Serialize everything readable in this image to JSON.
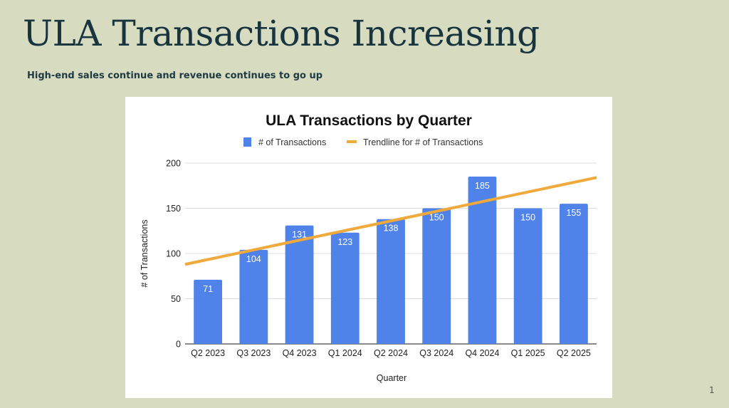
{
  "slide": {
    "title": "ULA Transactions Increasing",
    "subtitle": "High-end sales continue and revenue continues to go up",
    "page_number": "1",
    "colors": {
      "background": "#d7dbbf",
      "title": "#17343f",
      "bar": "#5083e9",
      "trendline": "#f0a93c"
    }
  },
  "chart_data": {
    "type": "bar",
    "title": "ULA Transactions by Quarter",
    "xlabel": "Quarter",
    "ylabel": "# of Transactions",
    "categories": [
      "Q2 2023",
      "Q3 2023",
      "Q4 2023",
      "Q1 2024",
      "Q2 2024",
      "Q3 2024",
      "Q4 2024",
      "Q1 2025",
      "Q2 2025"
    ],
    "series": [
      {
        "name": "# of Transactions",
        "type": "bar",
        "values": [
          71,
          104,
          131,
          123,
          138,
          150,
          185,
          150,
          155
        ],
        "data_labels": [
          "71",
          "104",
          "131",
          "123",
          "138",
          "150",
          "185",
          "150",
          "155"
        ]
      },
      {
        "name": "Trendline for # of Transactions",
        "type": "linear-trendline",
        "start_value": 88,
        "end_value": 184
      }
    ],
    "ylim": [
      0,
      200
    ],
    "yticks": [
      0,
      50,
      100,
      150,
      200
    ],
    "ytick_labels": [
      "0",
      "50",
      "100",
      "150",
      "200"
    ],
    "grid": true,
    "legend": {
      "position": "top-center",
      "entries": [
        "# of Transactions",
        "Trendline for # of Transactions"
      ]
    }
  }
}
